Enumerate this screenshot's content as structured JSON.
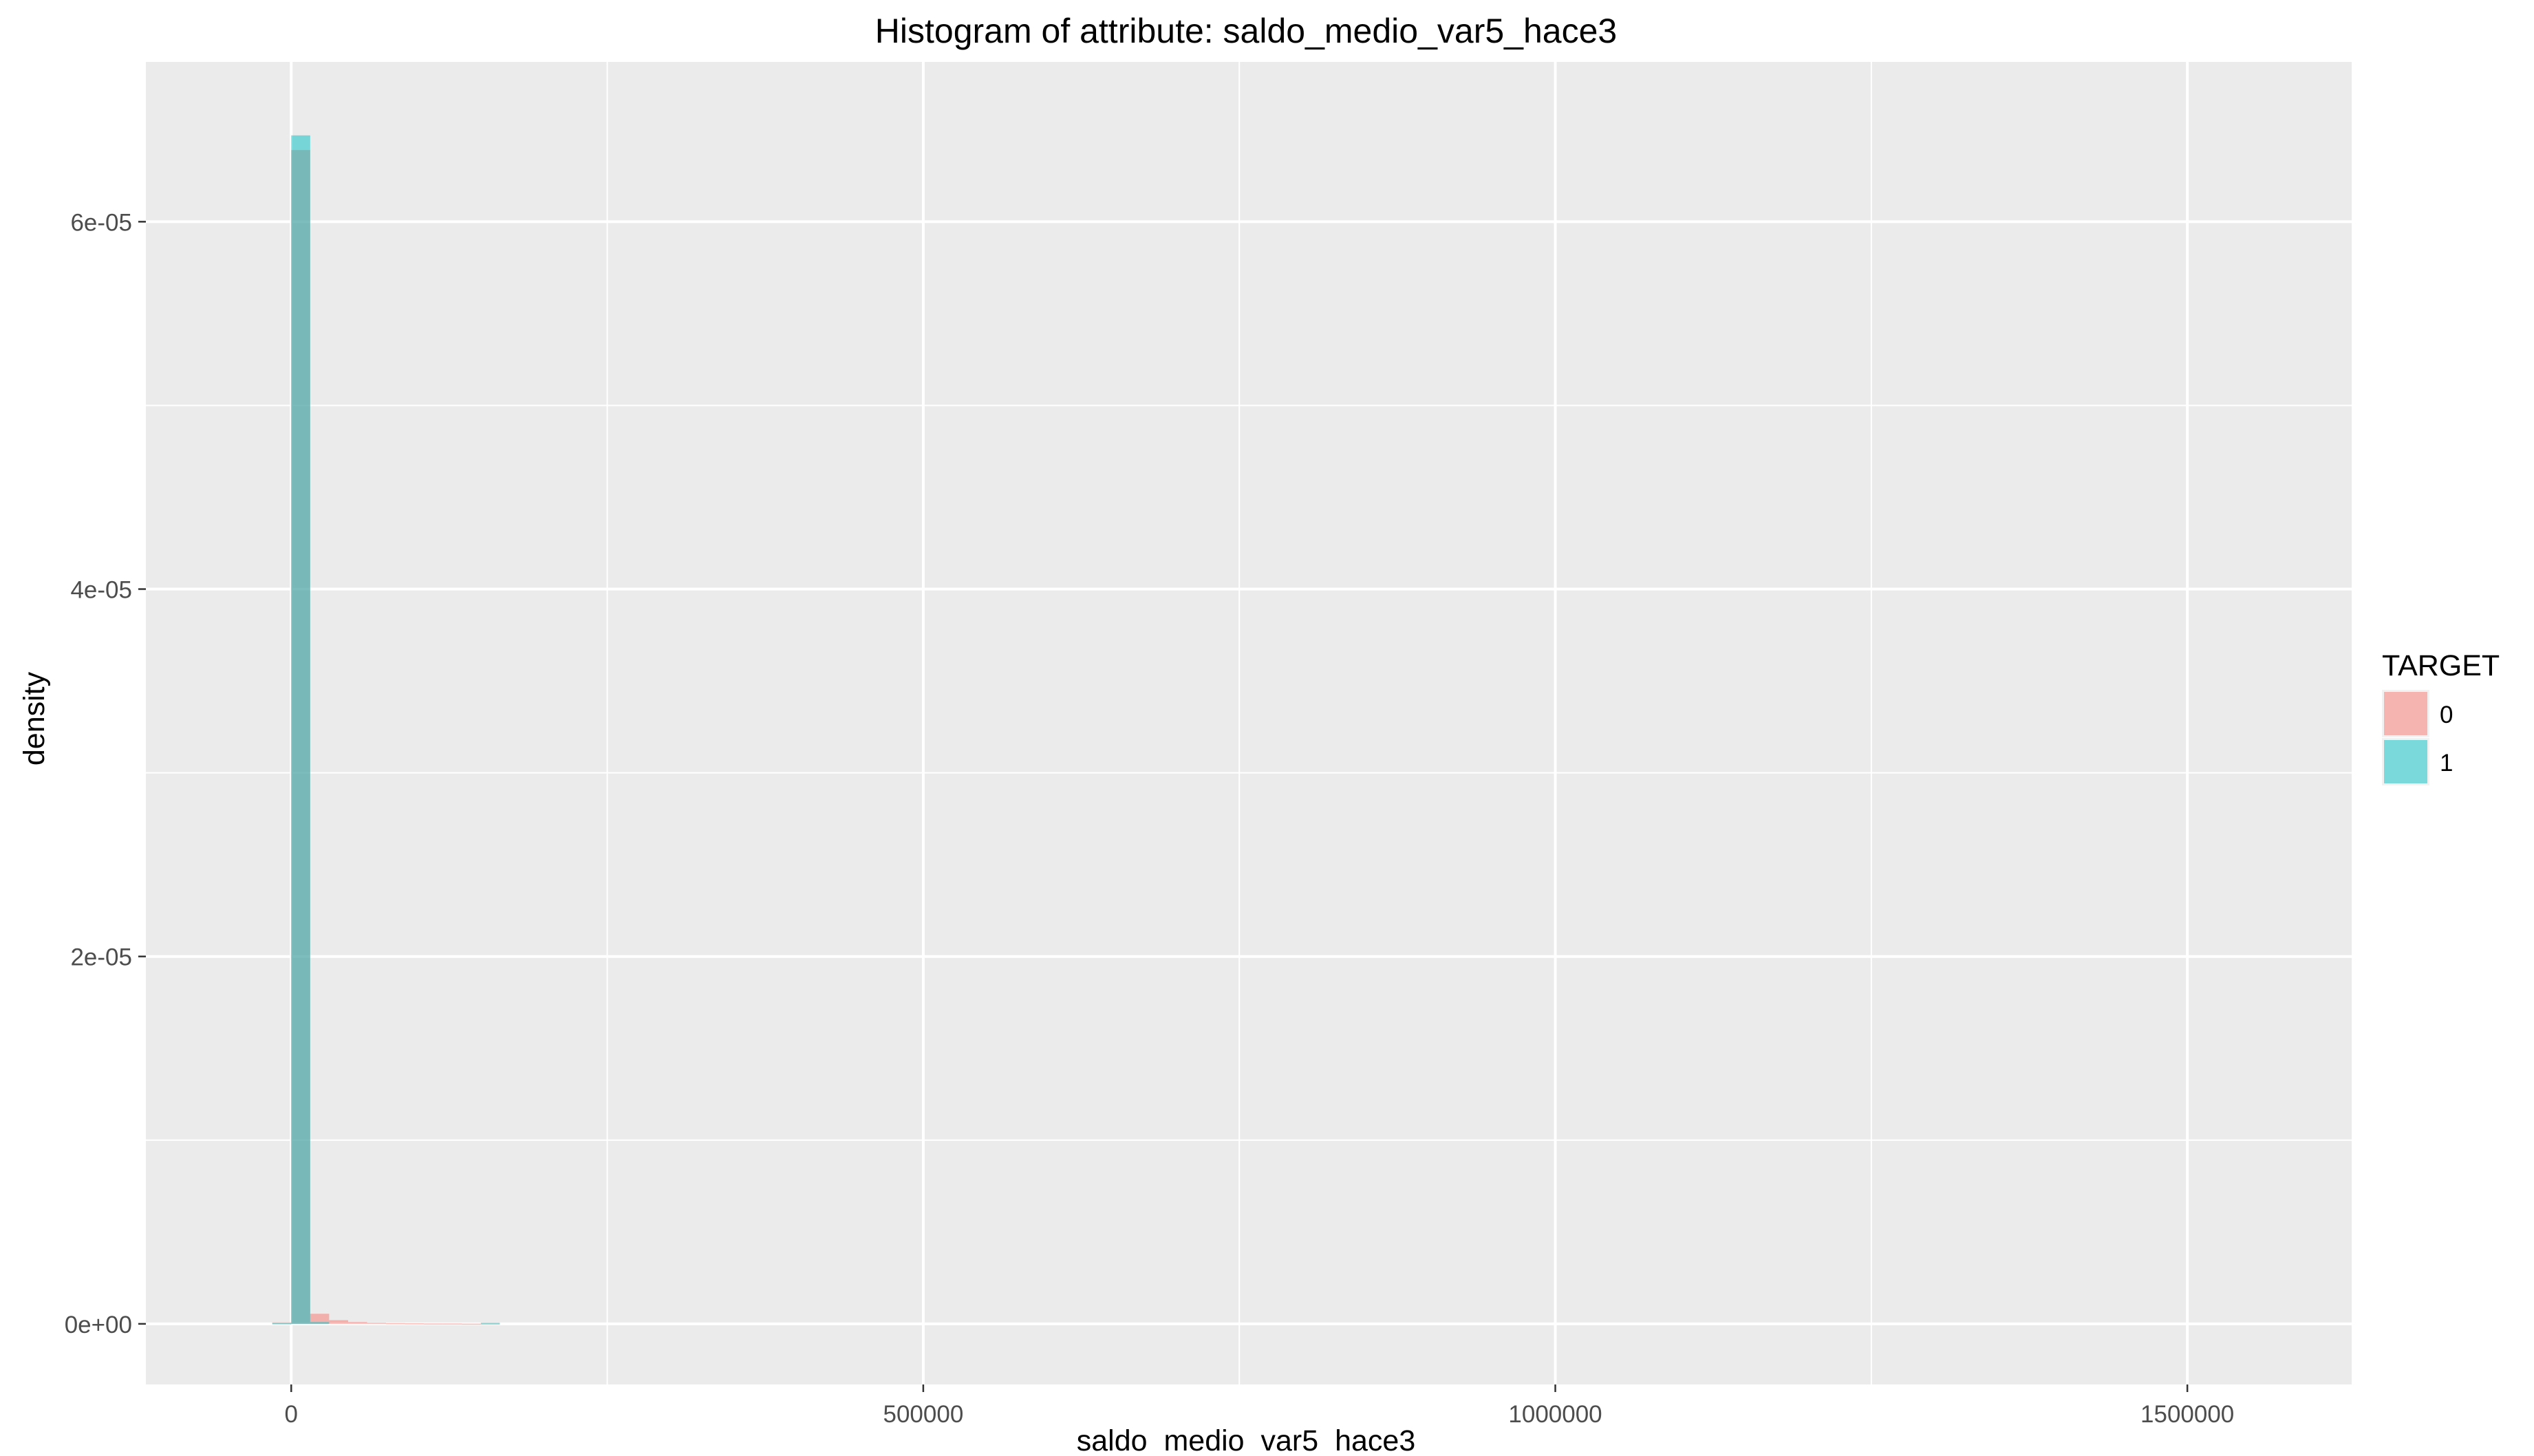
{
  "chart_data": {
    "type": "bar",
    "title": "Histogram of attribute: saldo_medio_var5_hace3",
    "xlabel": "saldo_medio_var5_hace3",
    "ylabel": "density",
    "xlim": [
      -115000,
      1630000
    ],
    "ylim": [
      -3.3e-06,
      6.87e-05
    ],
    "x_ticks": [
      0,
      500000,
      1000000,
      1500000
    ],
    "x_tick_labels": [
      "0",
      "500000",
      "1000000",
      "1500000"
    ],
    "y_ticks": [
      0,
      2e-05,
      4e-05,
      6e-05
    ],
    "y_tick_labels": [
      "0e+00",
      "2e-05",
      "4e-05",
      "6e-05"
    ],
    "grid": true,
    "legend": {
      "title": "TARGET",
      "position": "right",
      "entries": [
        "0",
        "1"
      ]
    },
    "bin_width": 15000,
    "series": [
      {
        "name": "0",
        "color": "#F8766D",
        "bins": [
          {
            "x": -15000,
            "y": 8e-08
          },
          {
            "x": 0,
            "y": 6.39e-05
          },
          {
            "x": 15000,
            "y": 5.5e-07
          },
          {
            "x": 30000,
            "y": 2e-07
          },
          {
            "x": 45000,
            "y": 1e-07
          },
          {
            "x": 60000,
            "y": 6e-08
          },
          {
            "x": 75000,
            "y": 4e-08
          },
          {
            "x": 90000,
            "y": 3e-08
          },
          {
            "x": 105000,
            "y": 2e-08
          },
          {
            "x": 120000,
            "y": 2e-08
          },
          {
            "x": 135000,
            "y": 1e-08
          },
          {
            "x": 150000,
            "y": 1e-08
          }
        ]
      },
      {
        "name": "1",
        "color": "#00BFC4",
        "bins": [
          {
            "x": -15000,
            "y": 3e-08
          },
          {
            "x": 0,
            "y": 6.47e-05
          },
          {
            "x": 15000,
            "y": 1e-07
          },
          {
            "x": 150000,
            "y": 6e-08
          }
        ]
      }
    ]
  }
}
